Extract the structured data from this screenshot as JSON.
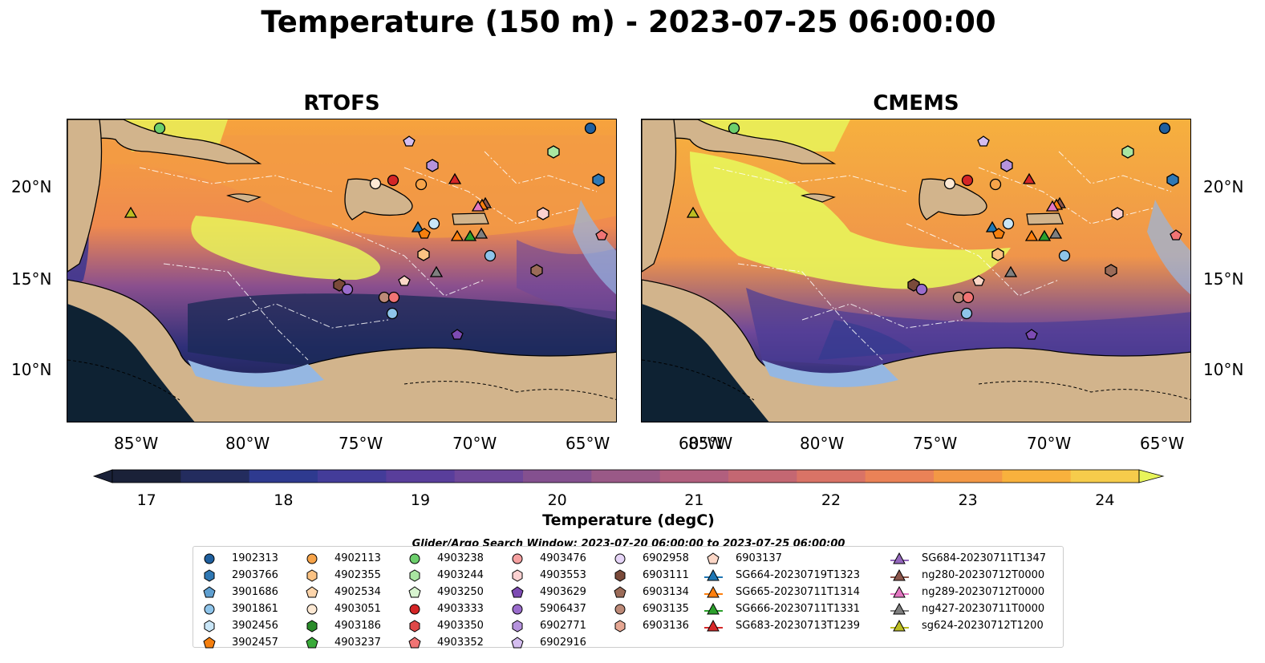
{
  "title": "Temperature (150 m) - 2023-07-25 06:00:00",
  "panels": [
    {
      "id": "rtofs",
      "title": "RTOFS"
    },
    {
      "id": "cmems",
      "title": "CMEMS"
    }
  ],
  "axes": {
    "lon_ticks": [
      "85°W",
      "80°W",
      "75°W",
      "70°W",
      "65°W",
      "60°W"
    ],
    "lat_ticks": [
      "20°N",
      "15°N",
      "10°N"
    ]
  },
  "colorbar": {
    "label": "Temperature (degC)",
    "ticks": [
      "17",
      "18",
      "19",
      "20",
      "21",
      "22",
      "23",
      "24"
    ],
    "min": 17,
    "max": 24.5,
    "step": 0.5,
    "colors": [
      "#1a2138",
      "#232c5e",
      "#2e3a8f",
      "#433c99",
      "#593e9b",
      "#6e4799",
      "#84508f",
      "#9a5987",
      "#b15f7e",
      "#c46772",
      "#d97366",
      "#ea8257",
      "#f39845",
      "#f8b13d",
      "#f6cc4b",
      "#e8f55a"
    ]
  },
  "search_window": "Glider/Argo Search Window: 2023-07-20 06:00:00 to 2023-07-25 06:00:00",
  "legend": {
    "columns": [
      [
        {
          "label": "1902313",
          "marker": "circle",
          "color": "#1f5f9e"
        },
        {
          "label": "2903766",
          "marker": "hexagon",
          "color": "#2f78b4"
        },
        {
          "label": "3901686",
          "marker": "pentagon",
          "color": "#5f9fd0"
        },
        {
          "label": "3901861",
          "marker": "circle",
          "color": "#8ec4ea"
        },
        {
          "label": "3902456",
          "marker": "hexagon",
          "color": "#c9e6f7"
        },
        {
          "label": "3902457",
          "marker": "pentagon",
          "color": "#f57f0e"
        }
      ],
      [
        {
          "label": "4902113",
          "marker": "circle",
          "color": "#f7a44a"
        },
        {
          "label": "4902355",
          "marker": "hexagon",
          "color": "#fbc283"
        },
        {
          "label": "4902534",
          "marker": "pentagon",
          "color": "#fdd5ab"
        },
        {
          "label": "4903051",
          "marker": "circle",
          "color": "#fde9d4"
        },
        {
          "label": "4903186",
          "marker": "hexagon",
          "color": "#2a8c2a"
        },
        {
          "label": "4903237",
          "marker": "pentagon",
          "color": "#3aab3a"
        }
      ],
      [
        {
          "label": "4903238",
          "marker": "circle",
          "color": "#6ccf6c"
        },
        {
          "label": "4903244",
          "marker": "hexagon",
          "color": "#a9e6a1"
        },
        {
          "label": "4903250",
          "marker": "pentagon",
          "color": "#d7f4cf"
        },
        {
          "label": "4903333",
          "marker": "circle",
          "color": "#d42526"
        },
        {
          "label": "4903350",
          "marker": "hexagon",
          "color": "#e04848"
        },
        {
          "label": "4903352",
          "marker": "pentagon",
          "color": "#f07474"
        }
      ],
      [
        {
          "label": "4903476",
          "marker": "circle",
          "color": "#f5a0a0"
        },
        {
          "label": "4903553",
          "marker": "hexagon",
          "color": "#fbd1d1"
        },
        {
          "label": "4903629",
          "marker": "pentagon",
          "color": "#7d4bb3"
        },
        {
          "label": "5906437",
          "marker": "circle",
          "color": "#9a6ccc"
        },
        {
          "label": "6902771",
          "marker": "hexagon",
          "color": "#b693dd"
        },
        {
          "label": "6902916",
          "marker": "pentagon",
          "color": "#d4bdef"
        }
      ],
      [
        {
          "label": "6902958",
          "marker": "circle",
          "color": "#e6d5f7"
        },
        {
          "label": "6903111",
          "marker": "hexagon",
          "color": "#7a4a3a"
        },
        {
          "label": "6903134",
          "marker": "pentagon",
          "color": "#9b6b58"
        },
        {
          "label": "6903135",
          "marker": "circle",
          "color": "#bd8a78"
        },
        {
          "label": "6903136",
          "marker": "hexagon",
          "color": "#e6a793"
        }
      ],
      [
        {
          "label": "6903137",
          "marker": "pentagon",
          "color": "#fcd7c7"
        },
        {
          "label": "SG664-20230719T1323",
          "marker": "triangle",
          "color": "#1f77b4"
        },
        {
          "label": "SG665-20230711T1314",
          "marker": "triangle",
          "color": "#ff7f0e"
        },
        {
          "label": "SG666-20230711T1331",
          "marker": "triangle",
          "color": "#2ca02c"
        },
        {
          "label": "SG683-20230713T1239",
          "marker": "triangle",
          "color": "#d62728"
        }
      ],
      [
        {
          "label": "SG684-20230711T1347",
          "marker": "triangle",
          "color": "#9467bd"
        },
        {
          "label": "ng280-20230712T0000",
          "marker": "triangle",
          "color": "#8c564b"
        },
        {
          "label": "ng289-20230712T0000",
          "marker": "triangle",
          "color": "#e377c2"
        },
        {
          "label": "ng427-20230711T0000",
          "marker": "triangle",
          "color": "#7f7f7f"
        },
        {
          "label": "sg624-20230712T1200",
          "marker": "triangle",
          "color": "#bcbd22"
        }
      ]
    ]
  }
}
